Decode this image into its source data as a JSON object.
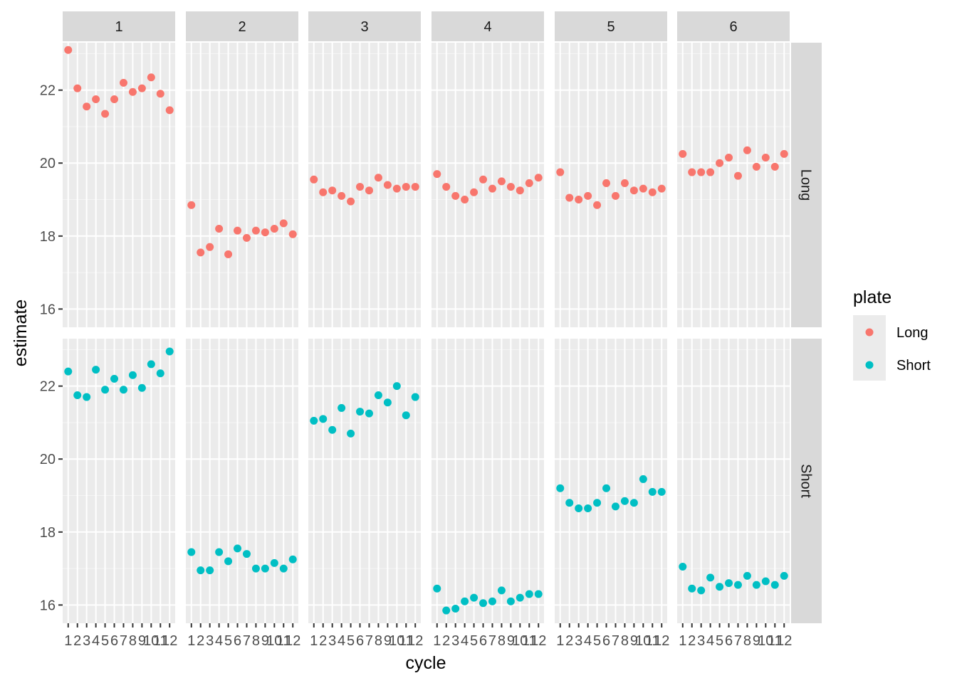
{
  "chart_data": {
    "type": "scatter",
    "facet_cols": [
      "1",
      "2",
      "3",
      "4",
      "5",
      "6"
    ],
    "facet_rows": [
      "Long",
      "Short"
    ],
    "xlabel": "cycle",
    "ylabel": "estimate",
    "x_tick_labels": [
      "1",
      "2",
      "3",
      "4",
      "5",
      "6",
      "7",
      "8",
      "9",
      "10",
      "11",
      "12"
    ],
    "y_ticks": [
      16,
      18,
      20,
      22
    ],
    "y_tick_labels": [
      "16",
      "18",
      "20",
      "22"
    ],
    "ylim": [
      15.5,
      23.3
    ],
    "grid": true,
    "legend": {
      "title": "plate",
      "placement": "right",
      "entries": [
        {
          "label": "Long",
          "color": "#F8766D"
        },
        {
          "label": "Short",
          "color": "#00BFC4"
        }
      ]
    },
    "panels": [
      {
        "col": "1",
        "row": "Long",
        "color": "#F8766D",
        "x": [
          1,
          2,
          3,
          4,
          5,
          6,
          7,
          8,
          9,
          10,
          11,
          12
        ],
        "y": [
          23.1,
          22.05,
          21.55,
          21.75,
          21.35,
          21.75,
          22.2,
          21.95,
          22.05,
          22.35,
          21.9,
          21.45
        ]
      },
      {
        "col": "2",
        "row": "Long",
        "color": "#F8766D",
        "x": [
          1,
          2,
          3,
          4,
          5,
          6,
          7,
          8,
          9,
          10,
          11,
          12
        ],
        "y": [
          18.85,
          17.55,
          17.7,
          18.2,
          17.5,
          18.15,
          17.95,
          18.15,
          18.1,
          18.2,
          18.35,
          18.05
        ]
      },
      {
        "col": "3",
        "row": "Long",
        "color": "#F8766D",
        "x": [
          1,
          2,
          3,
          4,
          5,
          6,
          7,
          8,
          9,
          10,
          11,
          12
        ],
        "y": [
          19.55,
          19.2,
          19.25,
          19.1,
          18.95,
          19.35,
          19.25,
          19.6,
          19.4,
          19.3,
          19.35,
          19.35
        ]
      },
      {
        "col": "4",
        "row": "Long",
        "color": "#F8766D",
        "x": [
          1,
          2,
          3,
          4,
          5,
          6,
          7,
          8,
          9,
          10,
          11,
          12
        ],
        "y": [
          19.7,
          19.35,
          19.1,
          19.0,
          19.2,
          19.55,
          19.3,
          19.5,
          19.35,
          19.25,
          19.45,
          19.6
        ]
      },
      {
        "col": "5",
        "row": "Long",
        "color": "#F8766D",
        "x": [
          1,
          2,
          3,
          4,
          5,
          6,
          7,
          8,
          9,
          10,
          11,
          12
        ],
        "y": [
          19.75,
          19.05,
          19.0,
          19.1,
          18.85,
          19.45,
          19.1,
          19.45,
          19.25,
          19.3,
          19.2,
          19.3
        ]
      },
      {
        "col": "6",
        "row": "Long",
        "color": "#F8766D",
        "x": [
          1,
          2,
          3,
          4,
          5,
          6,
          7,
          8,
          9,
          10,
          11,
          12
        ],
        "y": [
          20.25,
          19.75,
          19.75,
          19.75,
          20.0,
          20.15,
          19.65,
          20.35,
          19.9,
          20.15,
          19.9,
          20.25
        ]
      },
      {
        "col": "1",
        "row": "Short",
        "color": "#00BFC4",
        "x": [
          1,
          2,
          3,
          4,
          5,
          6,
          7,
          8,
          9,
          10,
          11,
          12
        ],
        "y": [
          22.4,
          21.75,
          21.7,
          22.45,
          21.9,
          22.2,
          21.9,
          22.3,
          21.95,
          22.6,
          22.35,
          22.95
        ]
      },
      {
        "col": "2",
        "row": "Short",
        "color": "#00BFC4",
        "x": [
          1,
          2,
          3,
          4,
          5,
          6,
          7,
          8,
          9,
          10,
          11,
          12
        ],
        "y": [
          17.45,
          16.95,
          16.95,
          17.45,
          17.2,
          17.55,
          17.4,
          17.0,
          17.0,
          17.15,
          17.0,
          17.25
        ]
      },
      {
        "col": "3",
        "row": "Short",
        "color": "#00BFC4",
        "x": [
          1,
          2,
          3,
          4,
          5,
          6,
          7,
          8,
          9,
          10,
          11,
          12
        ],
        "y": [
          21.05,
          21.1,
          20.8,
          21.4,
          20.7,
          21.3,
          21.25,
          21.75,
          21.55,
          22.0,
          21.2,
          21.7
        ]
      },
      {
        "col": "4",
        "row": "Short",
        "color": "#00BFC4",
        "x": [
          1,
          2,
          3,
          4,
          5,
          6,
          7,
          8,
          9,
          10,
          11,
          12
        ],
        "y": [
          16.45,
          15.85,
          15.9,
          16.1,
          16.2,
          16.05,
          16.1,
          16.4,
          16.1,
          16.2,
          16.3,
          16.3
        ]
      },
      {
        "col": "5",
        "row": "Short",
        "color": "#00BFC4",
        "x": [
          1,
          2,
          3,
          4,
          5,
          6,
          7,
          8,
          9,
          10,
          11,
          12
        ],
        "y": [
          19.2,
          18.8,
          18.65,
          18.65,
          18.8,
          19.2,
          18.7,
          18.85,
          18.8,
          19.45,
          19.1,
          19.1
        ]
      },
      {
        "col": "6",
        "row": "Short",
        "color": "#00BFC4",
        "x": [
          1,
          2,
          3,
          4,
          5,
          6,
          7,
          8,
          9,
          10,
          11,
          12
        ],
        "y": [
          17.05,
          16.45,
          16.4,
          16.75,
          16.5,
          16.6,
          16.55,
          16.8,
          16.55,
          16.65,
          16.55,
          16.8
        ]
      }
    ]
  }
}
